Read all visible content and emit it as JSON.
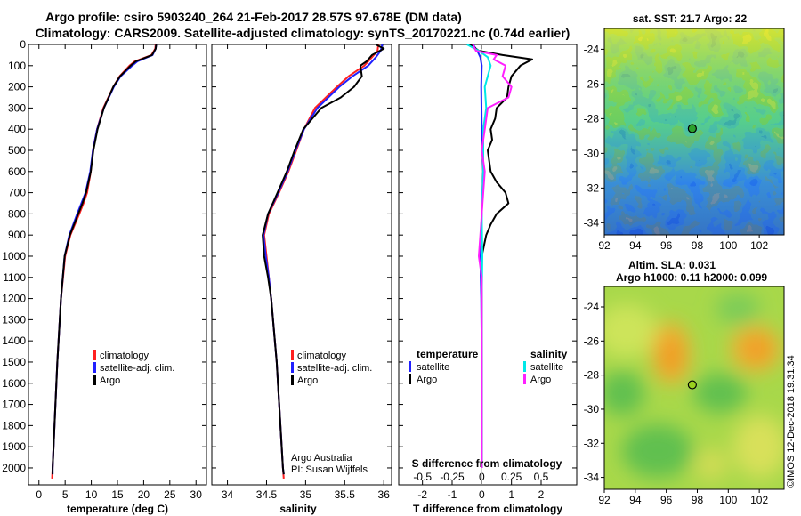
{
  "header": {
    "title_line1": "Argo profile: csiro 5903240_264 21-Feb-2017 28.57S 97.678E (DM data)",
    "title_line2": "Climatology: CARS2009. Satellite-adjusted climatology: synTS_20170221.nc (0.74d earlier)"
  },
  "footer": {
    "credit": "Argo Australia",
    "pi": "PI: Susan Wijffels",
    "stamp": "©IMOS 12-Dec-2018 19:31:34"
  },
  "colors": {
    "climatology": "#ff2020",
    "satellite": "#2020ff",
    "argo": "#000000",
    "cyan": "#00e8e8",
    "magenta": "#ff20ff"
  },
  "chart_data": [
    {
      "type": "line",
      "name": "temperature-profile",
      "xlabel": "temperature (deg C)",
      "xlim": [
        -2,
        32
      ],
      "ylim": [
        2080,
        0
      ],
      "xticks": [
        0,
        5,
        10,
        15,
        20,
        25,
        30
      ],
      "yticks": [
        0,
        100,
        200,
        300,
        400,
        500,
        600,
        700,
        800,
        900,
        1000,
        1100,
        1200,
        1300,
        1400,
        1500,
        1600,
        1700,
        1800,
        1900,
        2000
      ],
      "legend": [
        "climatology",
        "satellite-adj. clim.",
        "Argo"
      ],
      "series": [
        {
          "name": "climatology",
          "color": "#ff2020",
          "depth": [
            0,
            20,
            50,
            80,
            100,
            150,
            200,
            300,
            400,
            500,
            600,
            700,
            750,
            800,
            900,
            1000,
            1200,
            1500,
            2000,
            2050
          ],
          "values": [
            22.3,
            22.2,
            21.5,
            18.3,
            17.3,
            15.4,
            14.2,
            12.3,
            11.1,
            10.3,
            9.9,
            9.2,
            8.5,
            7.7,
            6.0,
            5.0,
            4.2,
            3.5,
            2.6,
            2.5
          ]
        },
        {
          "name": "satellite-adj. clim.",
          "color": "#2020ff",
          "depth": [
            0,
            20,
            50,
            80,
            100,
            150,
            200,
            300,
            400,
            500,
            600,
            700,
            750,
            800,
            900,
            1000,
            1200,
            1500,
            2000,
            2030
          ],
          "values": [
            22.4,
            22.3,
            21.7,
            18.8,
            17.8,
            15.6,
            14.3,
            12.4,
            11.1,
            10.3,
            9.8,
            8.9,
            8.1,
            7.3,
            5.8,
            4.9,
            4.2,
            3.5,
            2.6,
            2.6
          ]
        },
        {
          "name": "Argo",
          "color": "#000000",
          "depth": [
            0,
            20,
            50,
            80,
            100,
            150,
            200,
            300,
            400,
            500,
            600,
            700,
            750,
            800,
            900,
            1000,
            1200,
            1500,
            2000,
            2030
          ],
          "values": [
            22.4,
            22.3,
            21.6,
            18.5,
            17.5,
            15.5,
            14.2,
            12.4,
            11.2,
            10.4,
            9.9,
            9.0,
            8.3,
            7.5,
            5.9,
            4.9,
            4.2,
            3.5,
            2.6,
            2.6
          ]
        }
      ]
    },
    {
      "type": "line",
      "name": "salinity-profile",
      "xlabel": "salinity",
      "xlim": [
        33.8,
        36.1
      ],
      "ylim": [
        2080,
        0
      ],
      "xticks": [
        34,
        34.5,
        35,
        35.5,
        36
      ],
      "xtick_labels": [
        "34",
        "34.5",
        "35",
        "35.5",
        "36"
      ],
      "legend": [
        "climatology",
        "satellite-adj. clim.",
        "Argo"
      ],
      "series": [
        {
          "name": "climatology",
          "color": "#ff2020",
          "depth": [
            0,
            30,
            60,
            100,
            150,
            200,
            300,
            400,
            500,
            600,
            700,
            800,
            900,
            1000,
            1100,
            1200,
            1500,
            2000,
            2050
          ],
          "values": [
            35.93,
            35.92,
            35.85,
            35.75,
            35.55,
            35.4,
            35.12,
            34.98,
            34.88,
            34.78,
            34.66,
            34.53,
            34.47,
            34.5,
            34.53,
            34.56,
            34.63,
            34.71,
            34.72
          ]
        },
        {
          "name": "satellite-adj. clim.",
          "color": "#2020ff",
          "depth": [
            0,
            30,
            60,
            100,
            150,
            200,
            300,
            400,
            500,
            600,
            700,
            800,
            900,
            1000,
            1100,
            1200,
            1500,
            2000,
            2030
          ],
          "values": [
            35.98,
            35.96,
            35.9,
            35.8,
            35.6,
            35.43,
            35.15,
            34.98,
            34.87,
            34.77,
            34.65,
            34.52,
            34.46,
            34.49,
            34.53,
            34.56,
            34.63,
            34.71,
            34.72
          ]
        },
        {
          "name": "Argo",
          "color": "#000000",
          "depth": [
            0,
            20,
            50,
            80,
            100,
            150,
            200,
            250,
            300,
            400,
            500,
            600,
            700,
            800,
            900,
            1000,
            1100,
            1200,
            1500,
            2000,
            2030
          ],
          "values": [
            35.9,
            36.0,
            35.85,
            35.78,
            35.7,
            35.72,
            35.62,
            35.45,
            35.2,
            34.97,
            34.86,
            34.76,
            34.64,
            34.52,
            34.45,
            34.47,
            34.52,
            34.56,
            34.63,
            34.71,
            34.72
          ]
        }
      ],
      "annotations": [
        "Argo Australia",
        "PI: Susan Wijffels"
      ]
    },
    {
      "type": "line",
      "name": "difference-profile",
      "xlabel": "T difference from climatology",
      "xlim": [
        -2.8,
        3.2
      ],
      "ylim": [
        2080,
        0
      ],
      "xticks": [
        -2,
        -1,
        0,
        1,
        2
      ],
      "top_axis_label": "S difference from climatology",
      "top_ticks": [
        "-0.5",
        "-0.25",
        "0",
        "0.25",
        "0.5"
      ],
      "top_tick_positions": [
        -2,
        -1,
        0,
        1,
        2
      ],
      "legend_left_title": "temperature",
      "legend_right_title": "salinity",
      "legend": [
        "satellite",
        "Argo",
        "satellite",
        "Argo"
      ],
      "series": [
        {
          "name": "T satellite",
          "color": "#2020ff",
          "depth": [
            0,
            30,
            60,
            100,
            200,
            400,
            600,
            800,
            1000,
            1200,
            1500,
            2000
          ],
          "values": [
            -0.3,
            -0.15,
            -0.05,
            0.0,
            -0.02,
            0.0,
            0.05,
            0.0,
            -0.05,
            -0.02,
            0.0,
            0.0
          ]
        },
        {
          "name": "T Argo",
          "color": "#000000",
          "depth": [
            0,
            30,
            50,
            70,
            100,
            150,
            200,
            250,
            300,
            350,
            400,
            450,
            500,
            600,
            650,
            700,
            750,
            800,
            850,
            900,
            1000,
            1200,
            1500,
            2000
          ],
          "values": [
            -0.4,
            -0.1,
            0.7,
            1.7,
            1.3,
            1.0,
            0.9,
            0.85,
            0.5,
            0.45,
            0.3,
            0.35,
            0.2,
            0.3,
            0.5,
            0.8,
            0.9,
            0.5,
            0.3,
            0.15,
            0.0,
            0.0,
            0.0,
            0.0
          ]
        },
        {
          "name": "S satellite",
          "color": "#00e8e8",
          "depth": [
            0,
            30,
            60,
            100,
            200,
            300,
            400,
            600,
            800,
            1000,
            1200,
            1500,
            2000
          ],
          "values": [
            -0.5,
            -0.1,
            0.2,
            0.3,
            0.1,
            0.15,
            0.05,
            0.05,
            0.0,
            0.02,
            0.0,
            0.0,
            0.0
          ]
        },
        {
          "name": "S Argo",
          "color": "#ff20ff",
          "depth": [
            0,
            30,
            50,
            70,
            100,
            150,
            200,
            250,
            300,
            400,
            500,
            600,
            700,
            800,
            900,
            1000,
            1100,
            1200,
            1500,
            2000
          ],
          "values": [
            -0.3,
            -0.2,
            0.5,
            0.4,
            0.8,
            0.7,
            1.0,
            0.9,
            0.2,
            0.1,
            0.0,
            0.1,
            0.05,
            0.0,
            -0.05,
            -0.1,
            0.0,
            0.0,
            0.0,
            0.0
          ]
        }
      ]
    },
    {
      "type": "heatmap",
      "name": "sst-map",
      "title": "sat. SST: 21.7 Argo: 22",
      "xlim": [
        92,
        103.6
      ],
      "ylim": [
        -34.7,
        -22.8
      ],
      "xticks": [
        92,
        94,
        96,
        98,
        100,
        102
      ],
      "yticks": [
        -24,
        -26,
        -28,
        -30,
        -32,
        -34
      ],
      "ytick_labels": [
        "-24",
        "-26",
        "-28",
        "-30",
        "-32",
        "-34"
      ],
      "marker": {
        "lon": 97.678,
        "lat": -28.57,
        "fill": "#2ca02c"
      }
    },
    {
      "type": "heatmap",
      "name": "sla-map",
      "title": "Altim. SLA: 0.031",
      "subtitle": "Argo h1000: 0.11 h2000: 0.099",
      "xlim": [
        92,
        103.6
      ],
      "ylim": [
        -34.7,
        -22.8
      ],
      "xticks": [
        92,
        94,
        96,
        98,
        100,
        102
      ],
      "yticks": [
        -24,
        -26,
        -28,
        -30,
        -32,
        -34
      ],
      "ytick_labels": [
        "-24",
        "-26",
        "-28",
        "-30",
        "-32",
        "-34"
      ],
      "marker": {
        "lon": 97.678,
        "lat": -28.57,
        "fill": "#9ad01e"
      }
    }
  ]
}
